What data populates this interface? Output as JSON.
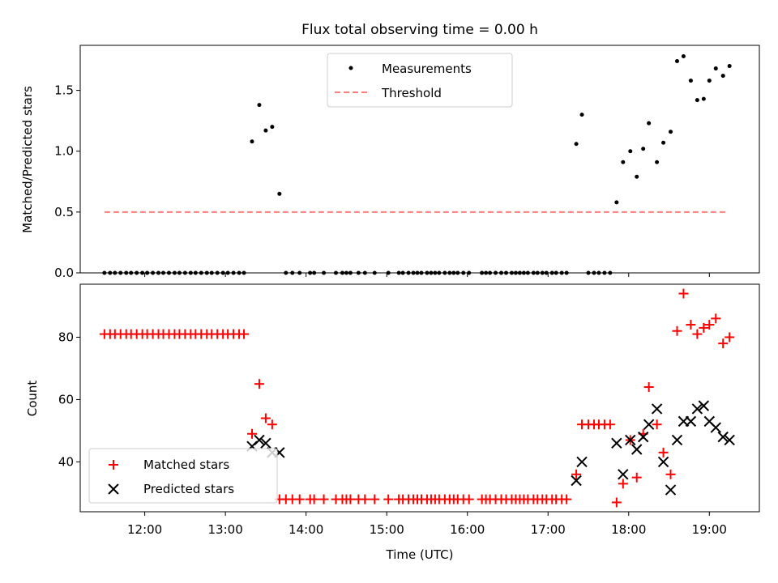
{
  "chart_data": [
    {
      "type": "scatter",
      "title": "Flux total observing time = 0.00 h",
      "xlabel": "",
      "ylabel": "Matched/Predicted stars",
      "xlim": [
        11.2,
        19.62
      ],
      "ylim": [
        0,
        1.87
      ],
      "yticks": [
        0,
        0.5,
        1.0,
        1.5
      ],
      "ytick_labels": [
        "0.0",
        "0.5",
        "1.0",
        "1.5"
      ],
      "legend_position": "upper center",
      "series": [
        {
          "name": "Measurements",
          "color": "#000000",
          "marker": "dot",
          "x": [
            11.5,
            11.57,
            11.63,
            11.7,
            11.77,
            11.83,
            11.9,
            11.97,
            12.03,
            12.1,
            12.17,
            12.23,
            12.3,
            12.37,
            12.43,
            12.5,
            12.57,
            12.63,
            12.7,
            12.77,
            12.83,
            12.9,
            12.97,
            13.03,
            13.1,
            13.17,
            13.23,
            13.33,
            13.42,
            13.5,
            13.58,
            13.67,
            13.75,
            13.83,
            13.92,
            14.05,
            14.1,
            14.22,
            14.37,
            14.45,
            14.5,
            14.55,
            14.65,
            14.73,
            14.85,
            15.02,
            15.15,
            15.2,
            15.27,
            15.33,
            15.38,
            15.43,
            15.5,
            15.55,
            15.6,
            15.65,
            15.72,
            15.78,
            15.83,
            15.88,
            15.95,
            16.02,
            16.18,
            16.23,
            16.28,
            16.35,
            16.42,
            16.48,
            16.55,
            16.6,
            16.65,
            16.7,
            16.75,
            16.82,
            16.87,
            16.93,
            16.98,
            17.05,
            17.1,
            17.17,
            17.23,
            17.35,
            17.42,
            17.5,
            17.57,
            17.63,
            17.7,
            17.77,
            17.85,
            17.93,
            18.02,
            18.1,
            18.18,
            18.25,
            18.35,
            18.43,
            18.52,
            18.6,
            18.68,
            18.77,
            18.85,
            18.93,
            19.0,
            19.08,
            19.17,
            19.25
          ],
          "y": [
            0,
            0,
            0,
            0,
            0,
            0,
            0,
            0,
            0,
            0,
            0,
            0,
            0,
            0,
            0,
            0,
            0,
            0,
            0,
            0,
            0,
            0,
            0,
            0,
            0,
            0,
            0,
            1.08,
            1.38,
            1.17,
            1.2,
            0.65,
            0,
            0,
            0,
            0,
            0,
            0,
            0,
            0,
            0,
            0,
            0,
            0,
            0,
            0,
            0,
            0,
            0,
            0,
            0,
            0,
            0,
            0,
            0,
            0,
            0,
            0,
            0,
            0,
            0,
            0,
            0,
            0,
            0,
            0,
            0,
            0,
            0,
            0,
            0,
            0,
            0,
            0,
            0,
            0,
            0,
            0,
            0,
            0,
            0,
            1.06,
            1.3,
            0,
            0,
            0,
            0,
            0,
            0.58,
            0.91,
            1.0,
            0.79,
            1.02,
            1.23,
            0.91,
            1.07,
            1.16,
            1.74,
            1.78,
            1.58,
            1.42,
            1.43,
            1.58,
            1.68,
            1.62,
            1.7
          ]
        },
        {
          "name": "Threshold",
          "color": "#ff7f7f",
          "style": "dashed",
          "x": [
            11.5,
            19.2
          ],
          "y": [
            0.5,
            0.5
          ]
        }
      ]
    },
    {
      "type": "scatter",
      "title": "",
      "xlabel": "Time (UTC)",
      "ylabel": "Count",
      "xlim": [
        11.2,
        19.62
      ],
      "ylim": [
        24,
        97
      ],
      "yticks": [
        40,
        60,
        80
      ],
      "ytick_labels": [
        "40",
        "60",
        "80"
      ],
      "xticks": [
        12,
        13,
        14,
        15,
        16,
        17,
        18,
        19
      ],
      "xtick_labels": [
        "12:00",
        "13:00",
        "14:00",
        "15:00",
        "16:00",
        "17:00",
        "18:00",
        "19:00"
      ],
      "legend_position": "lower left",
      "series": [
        {
          "name": "Matched stars",
          "color": "#ff0000",
          "marker": "plus",
          "x": [
            11.5,
            11.57,
            11.63,
            11.7,
            11.77,
            11.83,
            11.9,
            11.97,
            12.03,
            12.1,
            12.17,
            12.23,
            12.3,
            12.37,
            12.43,
            12.5,
            12.57,
            12.63,
            12.7,
            12.77,
            12.83,
            12.9,
            12.97,
            13.03,
            13.1,
            13.17,
            13.23,
            13.33,
            13.42,
            13.5,
            13.58,
            13.67,
            13.75,
            13.83,
            13.92,
            14.05,
            14.1,
            14.22,
            14.37,
            14.45,
            14.5,
            14.55,
            14.65,
            14.73,
            14.85,
            15.02,
            15.15,
            15.2,
            15.27,
            15.33,
            15.38,
            15.43,
            15.5,
            15.55,
            15.6,
            15.65,
            15.72,
            15.78,
            15.83,
            15.88,
            15.95,
            16.02,
            16.18,
            16.23,
            16.28,
            16.35,
            16.42,
            16.48,
            16.55,
            16.6,
            16.65,
            16.7,
            16.75,
            16.82,
            16.87,
            16.93,
            16.98,
            17.05,
            17.1,
            17.17,
            17.23,
            17.35,
            17.42,
            17.5,
            17.57,
            17.63,
            17.7,
            17.77,
            17.85,
            17.93,
            18.02,
            18.1,
            18.18,
            18.25,
            18.35,
            18.43,
            18.52,
            18.6,
            18.68,
            18.77,
            18.85,
            18.93,
            19.0,
            19.08,
            19.17,
            19.25
          ],
          "y": [
            81,
            81,
            81,
            81,
            81,
            81,
            81,
            81,
            81,
            81,
            81,
            81,
            81,
            81,
            81,
            81,
            81,
            81,
            81,
            81,
            81,
            81,
            81,
            81,
            81,
            81,
            81,
            49,
            65,
            54,
            52,
            28,
            28,
            28,
            28,
            28,
            28,
            28,
            28,
            28,
            28,
            28,
            28,
            28,
            28,
            28,
            28,
            28,
            28,
            28,
            28,
            28,
            28,
            28,
            28,
            28,
            28,
            28,
            28,
            28,
            28,
            28,
            28,
            28,
            28,
            28,
            28,
            28,
            28,
            28,
            28,
            28,
            28,
            28,
            28,
            28,
            28,
            28,
            28,
            28,
            28,
            36,
            52,
            52,
            52,
            52,
            52,
            52,
            27,
            33,
            47,
            35,
            49,
            64,
            52,
            43,
            36,
            82,
            94,
            84,
            81,
            83,
            84,
            86,
            78,
            80
          ]
        },
        {
          "name": "Predicted stars",
          "color": "#000000",
          "marker": "x",
          "x": [
            13.33,
            13.42,
            13.5,
            13.58,
            13.67,
            17.35,
            17.42,
            17.85,
            17.93,
            18.02,
            18.1,
            18.18,
            18.25,
            18.35,
            18.43,
            18.52,
            18.6,
            18.68,
            18.77,
            18.85,
            18.93,
            19.0,
            19.08,
            19.17,
            19.25
          ],
          "y": [
            45,
            47,
            46,
            43,
            43,
            34,
            40,
            46,
            36,
            47,
            44,
            48,
            52,
            57,
            40,
            31,
            47,
            53,
            53,
            57,
            58,
            53,
            51,
            48,
            47
          ]
        }
      ]
    }
  ]
}
